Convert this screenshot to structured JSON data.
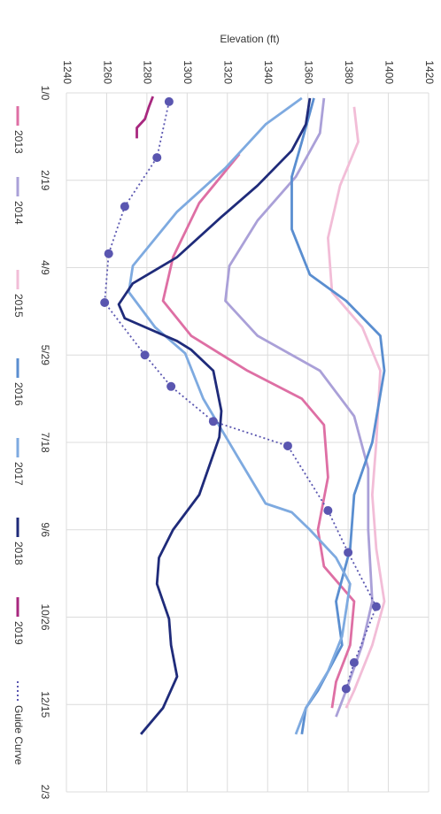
{
  "chart_data": {
    "type": "line",
    "y_label": "Elevation (ft)",
    "xlim": [
      0,
      400
    ],
    "xticks": [
      {
        "value": 0,
        "label": "1/0"
      },
      {
        "value": 50,
        "label": "2/19"
      },
      {
        "value": 100,
        "label": "4/9"
      },
      {
        "value": 150,
        "label": "5/29"
      },
      {
        "value": 200,
        "label": "7/18"
      },
      {
        "value": 250,
        "label": "9/6"
      },
      {
        "value": 300,
        "label": "10/26"
      },
      {
        "value": 350,
        "label": "12/15"
      },
      {
        "value": 400,
        "label": "2/3"
      }
    ],
    "ylim": [
      1240,
      1420
    ],
    "yticks": [
      1240,
      1260,
      1280,
      1300,
      1320,
      1340,
      1360,
      1380,
      1400,
      1420
    ],
    "grid": true,
    "legend": "bottom",
    "series": [
      {
        "name": "2013",
        "color": "#de6fa4",
        "x": [
          35,
          63,
          94,
          119,
          139,
          159,
          175,
          190,
          220,
          250,
          271,
          291,
          316,
          337,
          352
        ],
        "values": [
          1326,
          1306,
          1293,
          1288,
          1302,
          1330,
          1357,
          1368,
          1370,
          1365,
          1368,
          1383,
          1381,
          1374,
          1372
        ]
      },
      {
        "name": "2014",
        "color": "#aaa0d8",
        "x": [
          3,
          23,
          48,
          73,
          99,
          119,
          139,
          159,
          185,
          215,
          250,
          291,
          316,
          342,
          357
        ],
        "values": [
          1368,
          1366,
          1354,
          1335,
          1321,
          1319,
          1335,
          1366,
          1383,
          1390,
          1390,
          1392,
          1387,
          1379,
          1374
        ]
      },
      {
        "name": "2015",
        "color": "#f2bdd7",
        "x": [
          8,
          28,
          53,
          83,
          114,
          134,
          159,
          200,
          230,
          261,
          291,
          316,
          342,
          352
        ],
        "values": [
          1383,
          1385,
          1376,
          1370,
          1372,
          1387,
          1396,
          1394,
          1392,
          1394,
          1398,
          1392,
          1383,
          1379
        ]
      },
      {
        "name": "2016",
        "color": "#5a8ed0",
        "x": [
          3,
          28,
          48,
          78,
          104,
          119,
          139,
          159,
          200,
          230,
          261,
          291,
          316,
          342,
          352,
          367
        ],
        "values": [
          1363,
          1357,
          1352,
          1352,
          1361,
          1379,
          1396,
          1398,
          1392,
          1383,
          1381,
          1374,
          1377,
          1365,
          1359,
          1357
        ]
      },
      {
        "name": "2017",
        "color": "#7eaae0",
        "x": [
          3,
          18,
          43,
          68,
          99,
          114,
          134,
          149,
          175,
          210,
          235,
          240,
          250,
          266,
          281,
          311,
          331,
          352,
          367
        ],
        "values": [
          1357,
          1339,
          1319,
          1295,
          1273,
          1271,
          1284,
          1299,
          1308,
          1326,
          1339,
          1352,
          1361,
          1374,
          1381,
          1377,
          1370,
          1359,
          1354
        ]
      },
      {
        "name": "2018",
        "color": "#1f2b7a",
        "x": [
          3,
          18,
          33,
          53,
          71,
          94,
          109,
          121,
          129,
          142,
          147,
          159,
          182,
          197,
          230,
          250,
          266,
          281,
          301,
          316,
          334,
          352,
          367
        ],
        "values": [
          1361,
          1359,
          1352,
          1335,
          1317,
          1295,
          1273,
          1266,
          1269,
          1295,
          1302,
          1313,
          1317,
          1316,
          1306,
          1293,
          1286,
          1285,
          1291,
          1292,
          1295,
          1288,
          1277
        ]
      },
      {
        "name": "2019",
        "color": "#a8287f",
        "x": [
          2,
          8,
          15,
          20,
          26
        ],
        "values": [
          1283,
          1281,
          1279,
          1275,
          1275
        ]
      },
      {
        "name": "Guide Curve",
        "color": "#5a56b0",
        "dash": true,
        "marker": true,
        "x": [
          5,
          37,
          65,
          92,
          120,
          150,
          168,
          188,
          202,
          239,
          263,
          294,
          326,
          341
        ],
        "values": [
          1291,
          1285,
          1269,
          1261,
          1259,
          1279,
          1292,
          1313,
          1350,
          1370,
          1380,
          1394,
          1383,
          1379
        ]
      }
    ]
  }
}
